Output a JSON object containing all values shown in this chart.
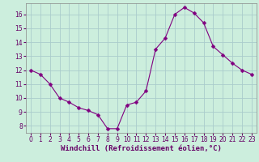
{
  "hours": [
    0,
    1,
    2,
    3,
    4,
    5,
    6,
    7,
    8,
    9,
    10,
    11,
    12,
    13,
    14,
    15,
    16,
    17,
    18,
    19,
    20,
    21,
    22,
    23
  ],
  "values": [
    12.0,
    11.7,
    11.0,
    10.0,
    9.7,
    9.3,
    9.1,
    8.8,
    7.8,
    7.8,
    9.5,
    9.7,
    10.5,
    13.5,
    14.3,
    16.0,
    16.5,
    16.1,
    15.4,
    13.7,
    13.1,
    12.5,
    12.0,
    11.7
  ],
  "line_color": "#800080",
  "marker": "D",
  "marker_size": 2.5,
  "bg_color": "#cceedd",
  "grid_color": "#aacccc",
  "xlabel": "Windchill (Refroidissement éolien,°C)",
  "xlim": [
    -0.5,
    23.5
  ],
  "ylim": [
    7.5,
    16.8
  ],
  "yticks": [
    8,
    9,
    10,
    11,
    12,
    13,
    14,
    15,
    16
  ],
  "xticks": [
    0,
    1,
    2,
    3,
    4,
    5,
    6,
    7,
    8,
    9,
    10,
    11,
    12,
    13,
    14,
    15,
    16,
    17,
    18,
    19,
    20,
    21,
    22,
    23
  ],
  "tick_fontsize": 5.5,
  "label_fontsize": 6.5,
  "spine_color": "#888888",
  "text_color": "#660066"
}
